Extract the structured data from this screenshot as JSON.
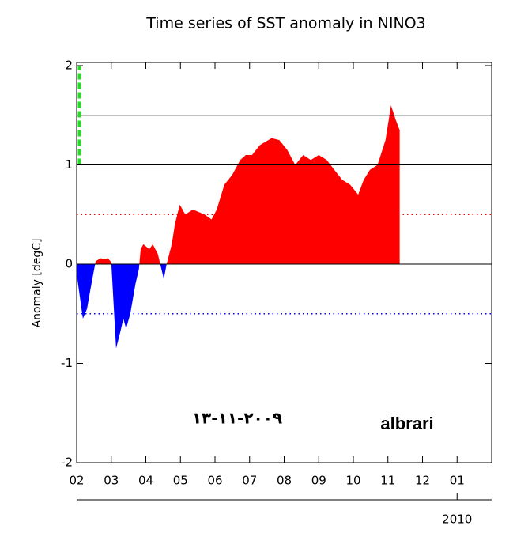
{
  "chart_data": {
    "type": "area",
    "title": "Time series of SST anomaly in NINO3",
    "y_label": "Anomaly [degC]",
    "x": [
      0,
      0.1,
      0.18,
      0.3,
      0.4,
      0.48,
      0.55,
      0.7,
      0.8,
      0.9,
      1.0,
      1.14,
      1.25,
      1.35,
      1.43,
      1.55,
      1.7,
      1.8,
      1.85,
      1.93,
      2.1,
      2.2,
      2.35,
      2.45,
      2.52,
      2.6,
      2.75,
      2.84,
      2.98,
      3.14,
      3.36,
      3.7,
      3.9,
      4.05,
      4.27,
      4.5,
      4.73,
      4.89,
      5.07,
      5.3,
      5.64,
      5.86,
      6.09,
      6.32,
      6.55,
      6.77,
      7.0,
      7.23,
      7.45,
      7.68,
      7.91,
      8.14,
      8.3,
      8.48,
      8.7,
      8.93,
      9.09,
      9.23,
      9.34
    ],
    "values": [
      -0.1,
      -0.35,
      -0.55,
      -0.45,
      -0.25,
      -0.1,
      0.03,
      0.06,
      0.05,
      0.06,
      0.02,
      -0.85,
      -0.7,
      -0.55,
      -0.65,
      -0.5,
      -0.2,
      -0.05,
      0.15,
      0.2,
      0.15,
      0.2,
      0.1,
      -0.05,
      -0.15,
      0.0,
      0.2,
      0.4,
      0.6,
      0.5,
      0.55,
      0.5,
      0.45,
      0.55,
      0.8,
      0.9,
      1.05,
      1.1,
      1.1,
      1.2,
      1.27,
      1.25,
      1.15,
      1.0,
      1.1,
      1.05,
      1.1,
      1.05,
      0.95,
      0.85,
      0.8,
      0.7,
      0.85,
      0.95,
      1.0,
      1.25,
      1.6,
      1.45,
      1.35
    ],
    "positive_color": "#ff0000",
    "negative_color": "#0000ff",
    "xlim": [
      0,
      12
    ],
    "ylim": [
      -2,
      2
    ],
    "yticks": [
      -2,
      -1,
      0,
      1,
      2
    ],
    "xticks": [
      {
        "value": 0,
        "label": "02"
      },
      {
        "value": 1,
        "label": "03"
      },
      {
        "value": 2,
        "label": "04"
      },
      {
        "value": 3,
        "label": "05"
      },
      {
        "value": 4,
        "label": "06"
      },
      {
        "value": 5,
        "label": "07"
      },
      {
        "value": 6,
        "label": "08"
      },
      {
        "value": 7,
        "label": "09"
      },
      {
        "value": 8,
        "label": "10"
      },
      {
        "value": 9,
        "label": "11"
      },
      {
        "value": 10,
        "label": "12"
      },
      {
        "value": 11,
        "label": "01"
      }
    ],
    "x2ticks": [
      {
        "value": 11,
        "label": "2010"
      }
    ],
    "reference_lines": [
      {
        "value": 1.5,
        "color": "#000000",
        "style": "solid"
      },
      {
        "value": 1,
        "color": "#000000",
        "style": "solid"
      },
      {
        "value": 0.5,
        "color": "#ff0000",
        "style": "dotted"
      },
      {
        "value": 0,
        "color": "#000000",
        "style": "solid"
      },
      {
        "value": -0.5,
        "color": "#0000ff",
        "style": "dotted"
      }
    ],
    "marker_line": {
      "x": 0.08,
      "y": [
        1,
        2
      ],
      "color": "#22dd22"
    },
    "annotations": [
      "٢٠٠٩-١١-١٣",
      "albrari"
    ]
  }
}
